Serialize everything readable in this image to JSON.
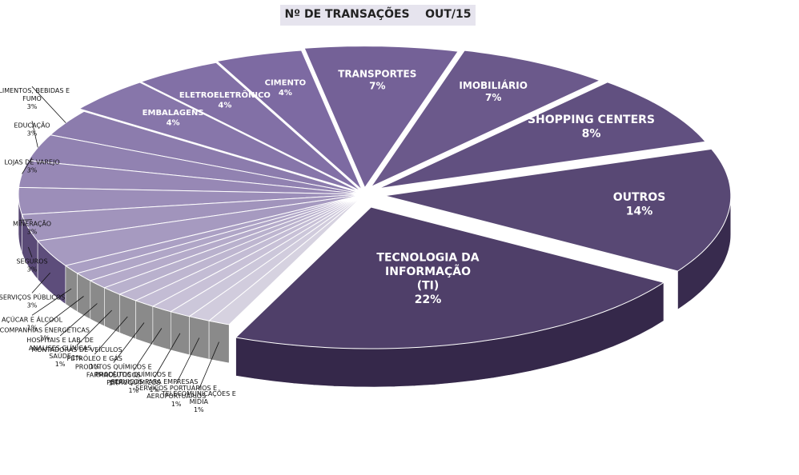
{
  "chart_data": {
    "type": "pie",
    "title": "Nº DE TRANSAÇÕES    OUT/15",
    "slices": [
      {
        "label": "TECNOLOGIA DA INFORMAÇÃO (TI)",
        "value": 22,
        "value_label": "22%"
      },
      {
        "label": "OUTROS",
        "value": 14,
        "value_label": "14%"
      },
      {
        "label": "SHOPPING CENTERS",
        "value": 8,
        "value_label": "8%"
      },
      {
        "label": "IMOBILIÁRIO",
        "value": 7,
        "value_label": "7%"
      },
      {
        "label": "TRANSPORTES",
        "value": 7,
        "value_label": "7%"
      },
      {
        "label": "CIMENTO",
        "value": 4,
        "value_label": "4%"
      },
      {
        "label": "ELETROELETRÔNICO",
        "value": 4,
        "value_label": "4%"
      },
      {
        "label": "EMBALAGENS",
        "value": 4,
        "value_label": "4%"
      },
      {
        "label": "ALIMENTOS, BEBIDAS E FUMO",
        "value": 3,
        "value_label": "3%"
      },
      {
        "label": "EDUCAÇÃO",
        "value": 3,
        "value_label": "3%"
      },
      {
        "label": "LOJAS DE VAREJO",
        "value": 3,
        "value_label": "3%"
      },
      {
        "label": "MINERAÇÃO",
        "value": 3,
        "value_label": "3%"
      },
      {
        "label": "SEGUROS",
        "value": 3,
        "value_label": "3%"
      },
      {
        "label": "SERVIÇOS PÚBLICOS",
        "value": 3,
        "value_label": "3%"
      },
      {
        "label": "AÇÚCAR E ÁLCOOL",
        "value": 1,
        "value_label": "1%"
      },
      {
        "label": "COMPANHIAS ENERGÉTICAS",
        "value": 1,
        "value_label": "1%"
      },
      {
        "label": "HOSPITAIS E LAB. DE ANALISES CLÍNICAS SAÚDE",
        "value": 1,
        "value_label": "1%"
      },
      {
        "label": "MONTADORAS DE VEÍCULOS",
        "value": 1,
        "value_label": "1%"
      },
      {
        "label": "PETRÓLEO E GÁS",
        "value": 1,
        "value_label": "1%"
      },
      {
        "label": "PRODUTOS QUÍMICOS E FARMACÊUTICOS",
        "value": 1,
        "value_label": "1%"
      },
      {
        "label": "PRODUTOS QUÍMICOS E PETROQUÍMICOS",
        "value": 1,
        "value_label": "1%"
      },
      {
        "label": "SERVIÇOS PARA EMPRESAS",
        "value": 1,
        "value_label": "1%"
      },
      {
        "label": "SERVIÇOS PORTUÁRIOS E AEROPORTUÁRIOS",
        "value": 1,
        "value_label": "1%"
      },
      {
        "label": "TELECOMUNICAÇÕES E MÍDIA",
        "value": 1,
        "value_label": "1%"
      }
    ],
    "colors": {
      "dark": "#4f3f69",
      "mid": "#7d6aa2",
      "light": "#aba0c4",
      "pale": "#d6d2e0",
      "side_dark": "#35284a",
      "side_light": "#8a8a8a"
    }
  }
}
